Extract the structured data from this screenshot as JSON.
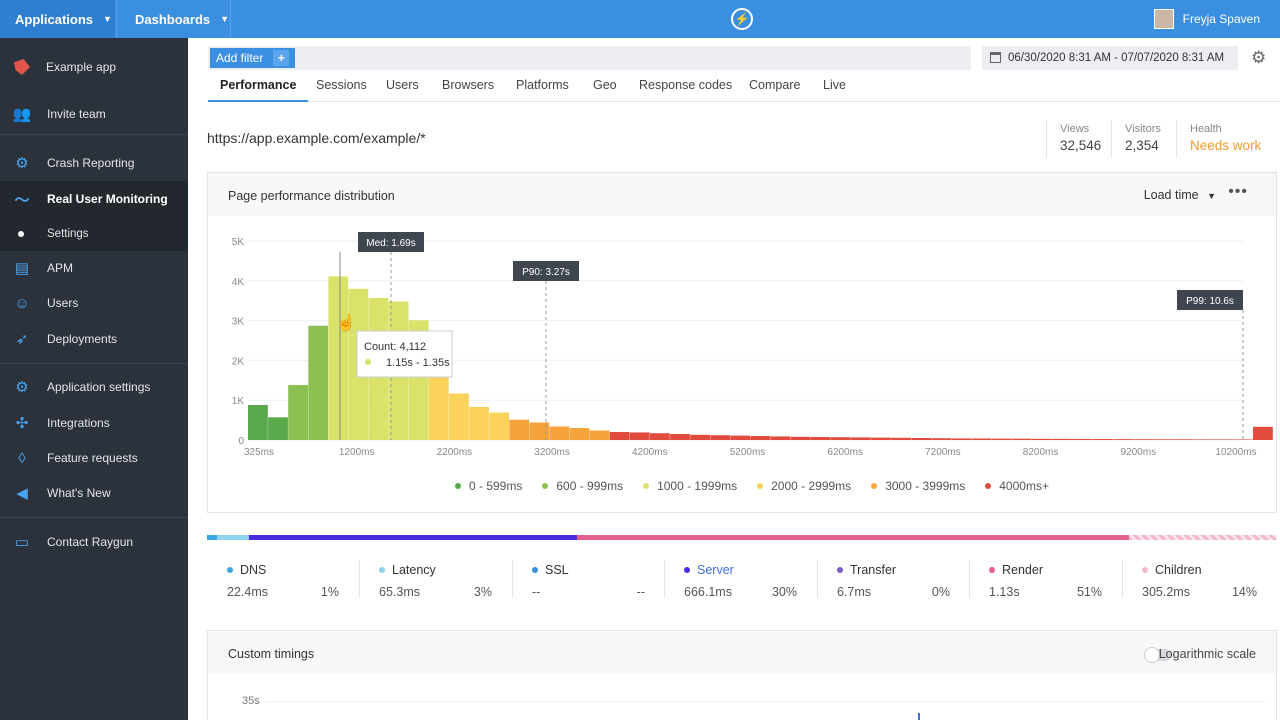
{
  "topbar": {
    "applications_label": "Applications",
    "dashboards_label": "Dashboards",
    "user_name": "Freyja Spaven"
  },
  "sidebar": {
    "app_name": "Example app",
    "items": [
      {
        "label": "Invite team",
        "icon": "invite-icon"
      },
      {
        "label": "Crash Reporting",
        "icon": "crash-icon"
      },
      {
        "label": "Real User Monitoring",
        "icon": "rum-icon"
      },
      {
        "label": "Settings",
        "icon": "dot-icon"
      },
      {
        "label": "APM",
        "icon": "apm-icon"
      },
      {
        "label": "Users",
        "icon": "users-icon"
      },
      {
        "label": "Deployments",
        "icon": "rocket-icon"
      },
      {
        "label": "Application settings",
        "icon": "gear-icon"
      },
      {
        "label": "Integrations",
        "icon": "puzzle-icon"
      },
      {
        "label": "Feature requests",
        "icon": "bulb-icon"
      },
      {
        "label": "What's New",
        "icon": "megaphone-icon"
      },
      {
        "label": "Contact Raygun",
        "icon": "chat-icon"
      }
    ]
  },
  "filter": {
    "add_label": "Add filter",
    "plus": "+"
  },
  "date_range": "06/30/2020 8:31 AM - 07/07/2020 8:31 AM",
  "tabs": [
    "Performance",
    "Sessions",
    "Users",
    "Browsers",
    "Platforms",
    "Geo",
    "Response codes",
    "Compare",
    "Live"
  ],
  "page_url": "https://app.example.com/example/*",
  "stats": {
    "views_label": "Views",
    "views_value": "32,546",
    "visitors_label": "Visitors",
    "visitors_value": "2,354",
    "health_label": "Health",
    "health_value": "Needs work"
  },
  "perf_card": {
    "title": "Page performance distribution",
    "metric_select": "Load time"
  },
  "chart_data": {
    "type": "bar",
    "yticks": [
      "5K",
      "4K",
      "3K",
      "2K",
      "1K",
      "0"
    ],
    "ylim": [
      0,
      5000
    ],
    "xticks": [
      "325ms",
      "1200ms",
      "2200ms",
      "3200ms",
      "4200ms",
      "5200ms",
      "6200ms",
      "7200ms",
      "8200ms",
      "9200ms",
      "10200ms"
    ],
    "values": [
      880,
      570,
      1380,
      2870,
      4112,
      3800,
      3570,
      3480,
      3010,
      2140,
      1170,
      830,
      690,
      510,
      440,
      340,
      300,
      240,
      200,
      190,
      170,
      150,
      130,
      120,
      110,
      100,
      90,
      80,
      75,
      70,
      65,
      60,
      55,
      50,
      45,
      40,
      38,
      35,
      33,
      30,
      28,
      26,
      24,
      22,
      20,
      18,
      17,
      16,
      15,
      14,
      330
    ],
    "bucket_colors": [
      "#59a84b",
      "#59a84b",
      "#8cc152",
      "#8cc152",
      "#d9e36a",
      "#d9e36a",
      "#d9e36a",
      "#d9e36a",
      "#d9e36a",
      "#fbd35a",
      "#fbd35a",
      "#fbd35a",
      "#fbd35a",
      "#f5a33a",
      "#f5a33a",
      "#f5a33a",
      "#f5a33a",
      "#f5a33a",
      "#e24c3f"
    ],
    "markers": [
      {
        "label": "Med: 1.69s"
      },
      {
        "label": "P90: 3.27s"
      },
      {
        "label": "P99: 10.6s"
      }
    ],
    "tooltip": {
      "count": "Count: 4,112",
      "range": "1.15s - 1.35s"
    },
    "legend": [
      {
        "label": "0 - 599ms",
        "color": "#59a84b"
      },
      {
        "label": "600 - 999ms",
        "color": "#8cc152"
      },
      {
        "label": "1000 - 1999ms",
        "color": "#d9e36a"
      },
      {
        "label": "2000 - 2999ms",
        "color": "#fbd35a"
      },
      {
        "label": "3000 - 3999ms",
        "color": "#f5a33a"
      },
      {
        "label": "4000ms+",
        "color": "#e24c3f"
      }
    ]
  },
  "timings": [
    {
      "name": "DNS",
      "value": "22.4ms",
      "pct": "1%",
      "color": "#3aa8e6"
    },
    {
      "name": "Latency",
      "value": "65.3ms",
      "pct": "3%",
      "color": "#8fd3ef"
    },
    {
      "name": "SSL",
      "value": "--",
      "pct": "--",
      "color": "#3b8fe0"
    },
    {
      "name": "Server",
      "value": "666.1ms",
      "pct": "30%",
      "color": "#4a2be0"
    },
    {
      "name": "Transfer",
      "value": "6.7ms",
      "pct": "0%",
      "color": "#7b5bc4"
    },
    {
      "name": "Render",
      "value": "1.13s",
      "pct": "51%",
      "color": "#e4608a"
    },
    {
      "name": "Children",
      "value": "305.2ms",
      "pct": "14%",
      "color": "#f3b8c8"
    }
  ],
  "custom_card": {
    "title": "Custom timings",
    "toggle_label": "Logarithmic scale",
    "ytick": "35s"
  }
}
